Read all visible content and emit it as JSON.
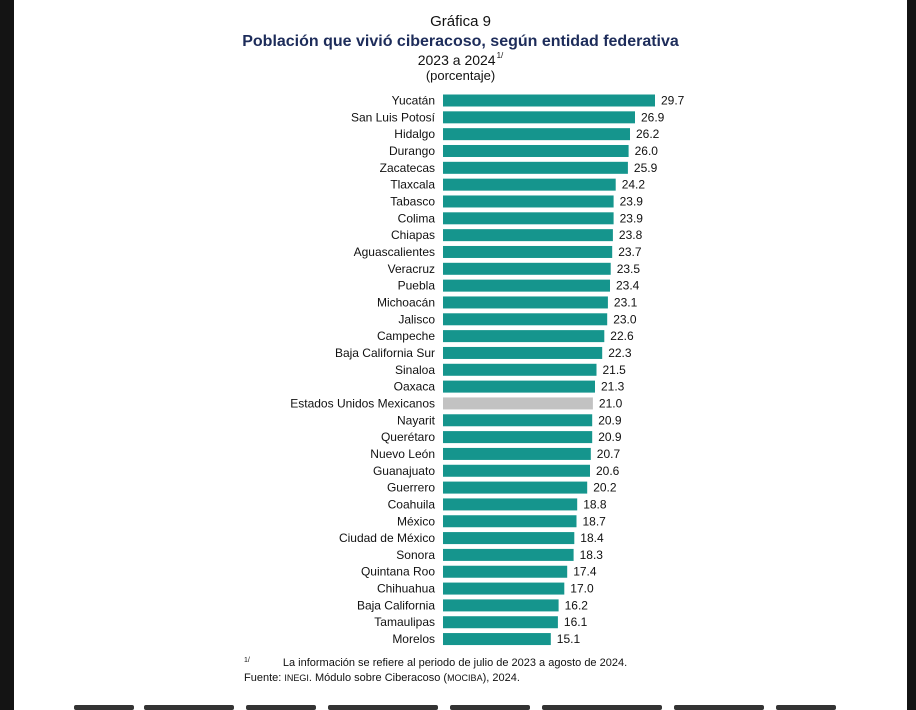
{
  "header": {
    "graph_number": "Gráfica 9",
    "title": "Población que vivió ciberacoso, según entidad federativa",
    "period": "2023 a 2024",
    "period_note_mark": "1/",
    "unit": "(porcentaje)"
  },
  "chart_data": {
    "type": "bar",
    "orientation": "horizontal",
    "categories": [
      "Yucatán",
      "San Luis Potosí",
      "Hidalgo",
      "Durango",
      "Zacatecas",
      "Tlaxcala",
      "Tabasco",
      "Colima",
      "Chiapas",
      "Aguascalientes",
      "Veracruz",
      "Puebla",
      "Michoacán",
      "Jalisco",
      "Campeche",
      "Baja California Sur",
      "Sinaloa",
      "Oaxaca",
      "Estados Unidos Mexicanos",
      "Nayarit",
      "Querétaro",
      "Nuevo León",
      "Guanajuato",
      "Guerrero",
      "Coahuila",
      "México",
      "Ciudad de México",
      "Sonora",
      "Quintana Roo",
      "Chihuahua",
      "Baja California",
      "Tamaulipas",
      "Morelos"
    ],
    "values": [
      29.7,
      26.9,
      26.2,
      26.0,
      25.9,
      24.2,
      23.9,
      23.9,
      23.8,
      23.7,
      23.5,
      23.4,
      23.1,
      23.0,
      22.6,
      22.3,
      21.5,
      21.3,
      21.0,
      20.9,
      20.9,
      20.7,
      20.6,
      20.2,
      18.8,
      18.7,
      18.4,
      18.3,
      17.4,
      17.0,
      16.2,
      16.1,
      15.1
    ],
    "value_labels": [
      "29.7",
      "26.9",
      "26.2",
      "26.0",
      "25.9",
      "24.2",
      "23.9",
      "23.9",
      "23.8",
      "23.7",
      "23.5",
      "23.4",
      "23.1",
      "23.0",
      "22.6",
      "22.3",
      "21.5",
      "21.3",
      "21.0",
      "20.9",
      "20.9",
      "20.7",
      "20.6",
      "20.2",
      "18.8",
      "18.7",
      "18.4",
      "18.3",
      "17.4",
      "17.0",
      "16.2",
      "16.1",
      "15.1"
    ],
    "highlight_category": "Estados Unidos Mexicanos",
    "xlim": [
      0,
      29.7
    ],
    "grid": false,
    "legend": "none",
    "colors": {
      "bar": "#15958d",
      "highlight": "#c2c2c2"
    }
  },
  "footnotes": {
    "note_mark": "1/",
    "note_text": "La información se refiere al periodo de julio de 2023 a agosto de 2024.",
    "source_prefix": "Fuente: ",
    "source_org": "INEGI",
    "source_mid": ". Módulo sobre Ciberacoso (",
    "source_acronym": "MOCIBA",
    "source_end": "), 2024."
  }
}
